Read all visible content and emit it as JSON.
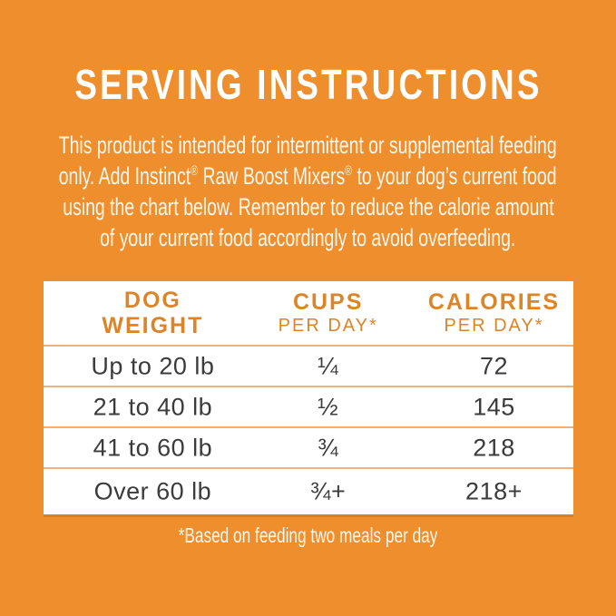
{
  "colors": {
    "background": "#EF8E2D",
    "table-bg": "#FFFFFF",
    "title-text": "#FFFFFF",
    "body-text": "#FCF6EC",
    "header-text": "#DC8428",
    "row-text": "#3B3B3C",
    "divider": "#F0B07A"
  },
  "title": "SERVING INSTRUCTIONS",
  "intro": {
    "lines": [
      "This product is intended for intermittent or supplemental feeding",
      "only. Add Instinct® Raw Boost Mixers® to your dog’s current food",
      "using the chart below. Remember to reduce the calorie amount",
      "of your current food accordingly to avoid overfeeding."
    ]
  },
  "table": {
    "columns": [
      {
        "line1": "DOG",
        "line2": "WEIGHT"
      },
      {
        "line1": "CUPS",
        "line2": "PER DAY*"
      },
      {
        "line1": "CALORIES",
        "line2": "PER DAY*"
      }
    ],
    "rows": [
      {
        "weight": "Up to 20 lb",
        "cups": "¼",
        "calories": "72"
      },
      {
        "weight": "21 to 40 lb",
        "cups": "½",
        "calories": "145"
      },
      {
        "weight": "41 to 60 lb",
        "cups": "¾",
        "calories": "218"
      },
      {
        "weight": "Over 60 lb",
        "cups": "¾+",
        "calories": "218+"
      }
    ]
  },
  "footnote": "*Based on feeding two meals per day"
}
